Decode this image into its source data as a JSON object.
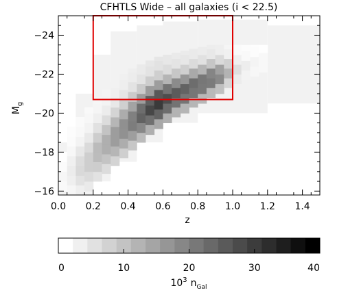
{
  "chart_data": {
    "type": "heatmap",
    "title": "CFHTLS Wide – all galaxies (i < 22.5)",
    "xlabel": "z",
    "ylabel": "M",
    "ylabel_sub": "g",
    "xlim": [
      0.0,
      1.5
    ],
    "ylim": [
      -15.8,
      -25.0
    ],
    "xticks": [
      "0.0",
      "0.2",
      "0.4",
      "0.6",
      "0.8",
      "1.0",
      "1.2",
      "1.4"
    ],
    "xtick_values": [
      0.0,
      0.2,
      0.4,
      0.6,
      0.8,
      1.0,
      1.2,
      1.4
    ],
    "yticks": [
      "−24",
      "−22",
      "−20",
      "−18",
      "−16"
    ],
    "ytick_values": [
      -24,
      -22,
      -20,
      -18,
      -16
    ],
    "bin_dz": 0.05,
    "bin_dm": 0.5,
    "columns": [
      {
        "z": 0.025,
        "m": [
          -16.0,
          -18.0
        ],
        "c": 1.5
      },
      {
        "z": 0.075,
        "m": [
          -15.8,
          -19.3
        ],
        "c": 3.0
      },
      {
        "z": 0.125,
        "m": [
          -15.8,
          -19.8
        ],
        "c": 6.0
      },
      {
        "z": 0.175,
        "m": [
          -16.0,
          -20.3
        ],
        "c": 8.0
      },
      {
        "z": 0.225,
        "m": [
          -16.5,
          -20.8
        ],
        "c": 11.0
      },
      {
        "z": 0.275,
        "m": [
          -16.9,
          -21.2
        ],
        "c": 13.0
      },
      {
        "z": 0.325,
        "m": [
          -17.3,
          -21.6
        ],
        "c": 16.0
      },
      {
        "z": 0.375,
        "m": [
          -17.7,
          -22.0
        ],
        "c": 18.0
      },
      {
        "z": 0.425,
        "m": [
          -18.1,
          -22.3
        ],
        "c": 21.0
      },
      {
        "z": 0.475,
        "m": [
          -18.5,
          -22.5
        ],
        "c": 25.0
      },
      {
        "z": 0.525,
        "m": [
          -18.9,
          -22.7
        ],
        "c": 29.0
      },
      {
        "z": 0.575,
        "m": [
          -19.2,
          -22.9
        ],
        "c": 31.0
      },
      {
        "z": 0.625,
        "m": [
          -19.5,
          -23.0
        ],
        "c": 28.0
      },
      {
        "z": 0.675,
        "m": [
          -19.8,
          -23.1
        ],
        "c": 26.0
      },
      {
        "z": 0.725,
        "m": [
          -20.0,
          -23.2
        ],
        "c": 25.0
      },
      {
        "z": 0.775,
        "m": [
          -20.3,
          -23.3
        ],
        "c": 24.0
      },
      {
        "z": 0.825,
        "m": [
          -20.5,
          -23.4
        ],
        "c": 23.0
      },
      {
        "z": 0.875,
        "m": [
          -20.8,
          -23.5
        ],
        "c": 22.0
      },
      {
        "z": 0.925,
        "m": [
          -21.0,
          -23.5
        ],
        "c": 19.0
      },
      {
        "z": 0.975,
        "m": [
          -21.3,
          -23.5
        ],
        "c": 12.0
      },
      {
        "z": 1.025,
        "m": [
          -21.5,
          -23.5
        ],
        "c": 5.0
      },
      {
        "z": 1.075,
        "m": [
          -21.7,
          -23.5
        ],
        "c": 3.0
      },
      {
        "z": 1.125,
        "m": [
          -21.9,
          -23.5
        ],
        "c": 2.0
      },
      {
        "z": 1.175,
        "m": [
          -22.1,
          -23.5
        ],
        "c": 1.5
      }
    ],
    "halo": [
      {
        "z": [
          0.0,
          0.1
        ],
        "m": [
          -15.8,
          -18.5
        ]
      },
      {
        "z": [
          0.1,
          0.2
        ],
        "m": [
          -15.8,
          -21.0
        ]
      },
      {
        "z": [
          0.2,
          0.3
        ],
        "m": [
          -16.5,
          -23.0
        ]
      },
      {
        "z": [
          0.3,
          0.45
        ],
        "m": [
          -17.5,
          -24.2
        ]
      },
      {
        "z": [
          0.45,
          0.6
        ],
        "m": [
          -18.5,
          -24.5
        ]
      },
      {
        "z": [
          0.6,
          0.8
        ],
        "m": [
          -19.5,
          -24.7
        ]
      },
      {
        "z": [
          0.8,
          1.2
        ],
        "m": [
          -20.0,
          -24.8
        ]
      },
      {
        "z": [
          1.2,
          1.5
        ],
        "m": [
          -20.5,
          -24.5
        ]
      }
    ],
    "selection_box": {
      "z": [
        0.2,
        1.0
      ],
      "m": [
        -20.7,
        -25.0
      ],
      "color": "#e00000"
    },
    "colorbar": {
      "range": [
        0,
        40
      ],
      "ticks": [
        "0",
        "10",
        "20",
        "30",
        "40"
      ],
      "tick_values": [
        0,
        10,
        20,
        30,
        40
      ],
      "steps": 18,
      "label_base": "10",
      "label_exp": "3",
      "label_var": "n",
      "label_sub": "Gal"
    },
    "colors": {
      "low": "#ffffff",
      "high": "#000000",
      "halo": "#f2f2f2"
    }
  }
}
